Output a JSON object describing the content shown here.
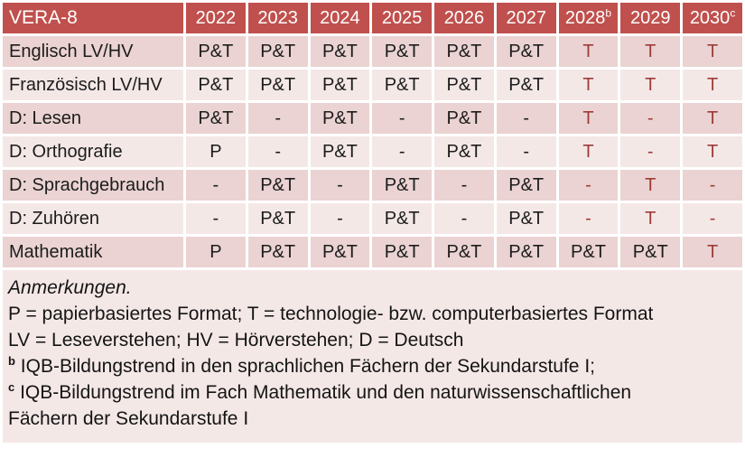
{
  "table": {
    "title": "VERA-8",
    "columns": [
      {
        "label": "2022",
        "sup": ""
      },
      {
        "label": "2023",
        "sup": ""
      },
      {
        "label": "2024",
        "sup": ""
      },
      {
        "label": "2025",
        "sup": ""
      },
      {
        "label": "2026",
        "sup": ""
      },
      {
        "label": "2027",
        "sup": ""
      },
      {
        "label": "2028",
        "sup": "b"
      },
      {
        "label": "2029",
        "sup": ""
      },
      {
        "label": "2030",
        "sup": "c"
      }
    ],
    "red_from_column": 6,
    "rows": [
      {
        "label": "Englisch LV/HV",
        "values": [
          "P&T",
          "P&T",
          "P&T",
          "P&T",
          "P&T",
          "P&T",
          "T",
          "T",
          "T"
        ]
      },
      {
        "label": "Französisch LV/HV",
        "values": [
          "P&T",
          "P&T",
          "P&T",
          "P&T",
          "P&T",
          "P&T",
          "T",
          "T",
          "T"
        ]
      },
      {
        "label": "D: Lesen",
        "values": [
          "P&T",
          "-",
          "P&T",
          "-",
          "P&T",
          "-",
          "T",
          "-",
          "T"
        ]
      },
      {
        "label": "D: Orthografie",
        "values": [
          "P",
          "-",
          "P&T",
          "-",
          "P&T",
          "-",
          "T",
          "-",
          "T"
        ]
      },
      {
        "label": "D: Sprachgebrauch",
        "values": [
          "-",
          "P&T",
          "-",
          "P&T",
          "-",
          "P&T",
          "-",
          "T",
          "-"
        ]
      },
      {
        "label": "D: Zuhören",
        "values": [
          "-",
          "P&T",
          "-",
          "P&T",
          "-",
          "P&T",
          "-",
          "T",
          "-"
        ]
      },
      {
        "label": "Mathematik",
        "values": [
          "P",
          "P&T",
          "P&T",
          "P&T",
          "P&T",
          "P&T",
          "P&T",
          "P&T",
          "T"
        ]
      }
    ]
  },
  "notes": {
    "heading": "Anmerkungen.",
    "lines": [
      "P = papierbasiertes Format; T = technologie- bzw. computerbasiertes Format",
      "LV = Leseverstehen; HV = Hörverstehen; D = Deutsch"
    ],
    "footnotes": [
      {
        "sup": "b",
        "text": "IQB-Bildungstrend in den sprachlichen Fächern der Sekundarstufe I;"
      },
      {
        "sup": "c",
        "text": "IQB-Bildungstrend im Fach Mathematik und den naturwissenschaftlichen Fächern der Sekundarstufe I"
      }
    ]
  },
  "colors": {
    "header_bg": "#c0504d",
    "header_text": "#ffffff",
    "row_dark": "#ead3d2",
    "row_light": "#f4e8e7",
    "text_black": "#1c1c1c",
    "text_red": "#9e3b38"
  }
}
